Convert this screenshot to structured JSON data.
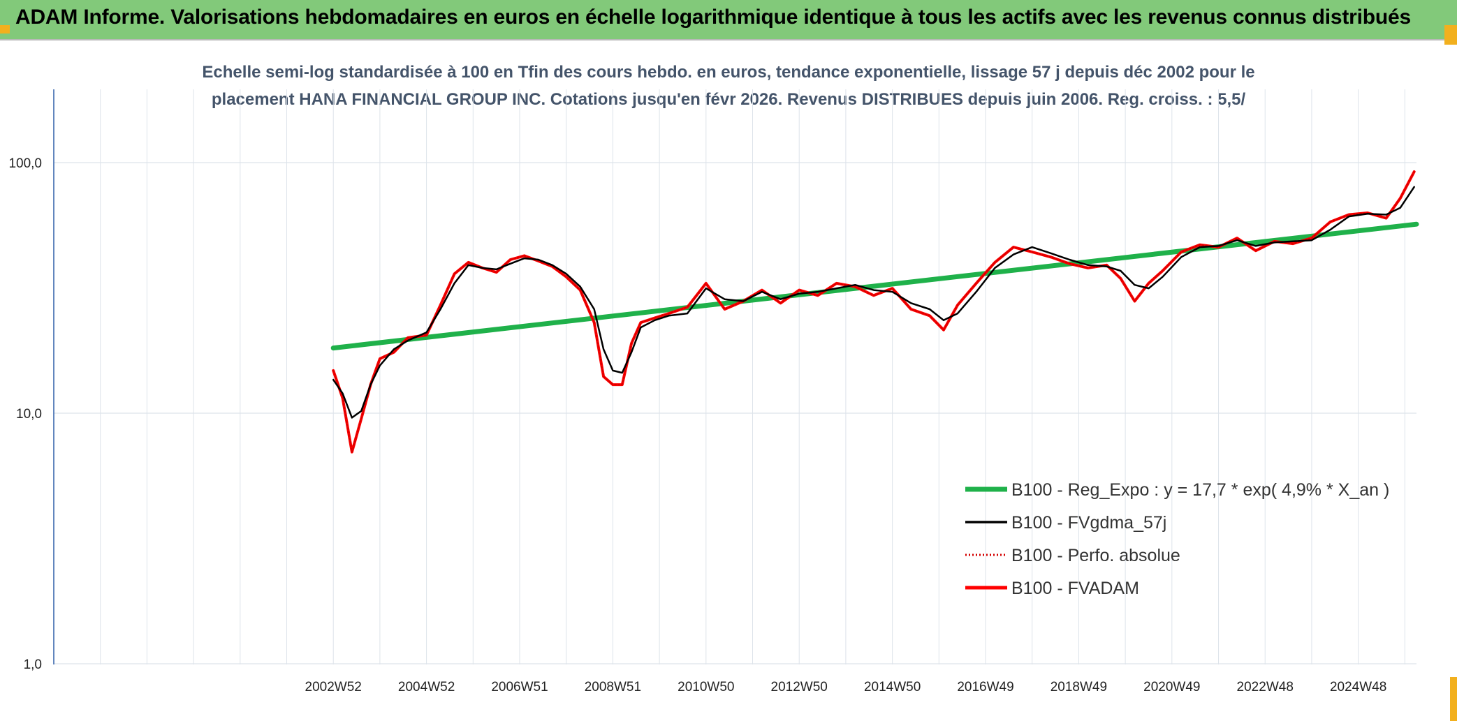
{
  "header": {
    "title": "ADAM Informe. Valorisations hebdomadaires en euros en échelle logarithmique identique à tous les actifs avec les revenus connus distribués"
  },
  "colors": {
    "header_bg": "#82c97a",
    "corner_accent": "#f2b01e",
    "reg_expo": "#1fb14a",
    "fvgdma": "#000000",
    "perfo": "#d40000",
    "fvadam": "#ff0000",
    "grid": "#dde3ea",
    "axis": "#2e5fa8"
  },
  "chart_data": {
    "type": "line",
    "title_lines": [
      "Echelle semi-log standardisée à 100 en Tfin des cours hebdo. en euros, tendance exponentielle, lissage 57 j depuis déc 2002 pour le",
      "placement HANA FINANCIAL GROUP INC. Cotations jusqu'en févr 2026. Revenus DISTRIBUES depuis juin 2006. Reg. croiss. : 5,5/"
    ],
    "y_scale": "log",
    "ylim": [
      1,
      200
    ],
    "y_ticks": [
      {
        "value": 1,
        "label": "1,0"
      },
      {
        "value": 10,
        "label": "10,0"
      },
      {
        "value": 100,
        "label": "100,0"
      }
    ],
    "xlim": [
      1997.0,
      2026.25
    ],
    "x_ticks": [
      {
        "x": 2003.0,
        "label": "2002W52"
      },
      {
        "x": 2005.0,
        "label": "2004W52"
      },
      {
        "x": 2007.0,
        "label": "2006W51"
      },
      {
        "x": 2009.0,
        "label": "2008W51"
      },
      {
        "x": 2011.0,
        "label": "2010W50"
      },
      {
        "x": 2013.0,
        "label": "2012W50"
      },
      {
        "x": 2015.0,
        "label": "2014W50"
      },
      {
        "x": 2017.0,
        "label": "2016W49"
      },
      {
        "x": 2019.0,
        "label": "2018W49"
      },
      {
        "x": 2021.0,
        "label": "2020W49"
      },
      {
        "x": 2023.0,
        "label": "2022W48"
      },
      {
        "x": 2025.0,
        "label": "2024W48"
      }
    ],
    "grid": true,
    "legend_position": "bottom-right",
    "series": [
      {
        "name": "B100 - Reg_Expo : y = 17,7 * exp( 4,9% *  X_an )",
        "key": "reg",
        "style": "thick",
        "x": [
          2003.0,
          2026.25
        ],
        "y": [
          18.2,
          56.8
        ]
      },
      {
        "name": "B100 - FVgdma_57j",
        "key": "fvgdma",
        "style": "thin",
        "x": [
          2003.0,
          2003.2,
          2003.4,
          2003.6,
          2003.8,
          2004.0,
          2004.3,
          2004.6,
          2005.0,
          2005.3,
          2005.6,
          2005.9,
          2006.2,
          2006.5,
          2006.8,
          2007.1,
          2007.4,
          2007.7,
          2008.0,
          2008.3,
          2008.6,
          2008.8,
          2009.0,
          2009.2,
          2009.4,
          2009.6,
          2009.9,
          2010.2,
          2010.6,
          2011.0,
          2011.4,
          2011.8,
          2012.2,
          2012.6,
          2013.0,
          2013.4,
          2013.8,
          2014.2,
          2014.6,
          2015.0,
          2015.4,
          2015.8,
          2016.1,
          2016.4,
          2016.8,
          2017.2,
          2017.6,
          2018.0,
          2018.4,
          2018.8,
          2019.2,
          2019.6,
          2019.9,
          2020.2,
          2020.5,
          2020.8,
          2021.2,
          2021.6,
          2022.0,
          2022.4,
          2022.8,
          2023.2,
          2023.6,
          2024.0,
          2024.4,
          2024.8,
          2025.2,
          2025.6,
          2025.9,
          2026.2
        ],
        "y": [
          13.6,
          12.0,
          9.6,
          10.2,
          13.0,
          15.5,
          18.0,
          19.5,
          21.0,
          26.0,
          33.0,
          39.0,
          38.0,
          37.5,
          39.5,
          41.5,
          41.0,
          39.0,
          36.0,
          32.0,
          26.0,
          18.0,
          14.8,
          14.5,
          17.5,
          22.0,
          23.5,
          24.5,
          25.0,
          31.5,
          28.5,
          28.0,
          30.5,
          28.5,
          30.0,
          30.5,
          31.5,
          32.5,
          31.0,
          30.5,
          27.5,
          26.0,
          23.5,
          25.0,
          30.5,
          38.0,
          43.0,
          46.0,
          43.5,
          41.0,
          39.0,
          38.5,
          37.0,
          32.5,
          31.5,
          35.0,
          42.0,
          46.0,
          46.5,
          49.0,
          46.5,
          48.0,
          48.5,
          49.0,
          54.0,
          61.0,
          62.5,
          62.0,
          66.0,
          80.0
        ]
      },
      {
        "name": "B100 - Perfo. absolue",
        "key": "perfo",
        "style": "dotted",
        "x": [
          2003.0,
          2003.2,
          2003.4,
          2003.6,
          2003.8,
          2004.0,
          2004.3,
          2004.6,
          2005.0,
          2005.3,
          2005.6,
          2005.9,
          2006.2,
          2006.5,
          2006.8,
          2007.1,
          2007.4,
          2007.7,
          2008.0,
          2008.3,
          2008.6,
          2008.8,
          2009.0,
          2009.2,
          2009.4,
          2009.6,
          2009.9,
          2010.2,
          2010.6,
          2011.0,
          2011.4,
          2011.8,
          2012.2,
          2012.6,
          2013.0,
          2013.4,
          2013.8,
          2014.2,
          2014.6,
          2015.0,
          2015.4,
          2015.8,
          2016.1,
          2016.4,
          2016.8,
          2017.2,
          2017.6,
          2018.0,
          2018.4,
          2018.8,
          2019.2,
          2019.6,
          2019.9,
          2020.2,
          2020.5,
          2020.8,
          2021.2,
          2021.6,
          2022.0,
          2022.4,
          2022.8,
          2023.2,
          2023.6,
          2024.0,
          2024.4,
          2024.8,
          2025.2,
          2025.6,
          2025.9,
          2026.2
        ],
        "y": [
          14.8,
          11.5,
          7.0,
          9.5,
          13.0,
          16.5,
          17.5,
          20.0,
          20.5,
          27.0,
          36.0,
          40.0,
          38.0,
          36.5,
          41.0,
          42.5,
          40.5,
          38.5,
          35.0,
          31.0,
          23.0,
          14.0,
          13.0,
          13.0,
          19.0,
          23.0,
          24.0,
          25.0,
          26.5,
          33.0,
          26.0,
          28.0,
          31.0,
          27.5,
          31.0,
          29.5,
          33.0,
          32.0,
          29.5,
          31.5,
          26.0,
          24.5,
          21.5,
          27.0,
          33.0,
          40.0,
          46.0,
          44.0,
          42.0,
          39.5,
          38.0,
          39.0,
          34.5,
          28.0,
          33.0,
          37.0,
          44.0,
          47.0,
          46.0,
          50.0,
          44.5,
          48.5,
          47.5,
          50.0,
          58.0,
          62.0,
          63.0,
          60.0,
          72.0,
          92.0
        ]
      },
      {
        "name": "B100 - FVADAM",
        "key": "fvadam",
        "style": "thick",
        "x": [
          2003.0,
          2003.2,
          2003.4,
          2003.6,
          2003.8,
          2004.0,
          2004.3,
          2004.6,
          2005.0,
          2005.3,
          2005.6,
          2005.9,
          2006.2,
          2006.5,
          2006.8,
          2007.1,
          2007.4,
          2007.7,
          2008.0,
          2008.3,
          2008.6,
          2008.8,
          2009.0,
          2009.2,
          2009.4,
          2009.6,
          2009.9,
          2010.2,
          2010.6,
          2011.0,
          2011.4,
          2011.8,
          2012.2,
          2012.6,
          2013.0,
          2013.4,
          2013.8,
          2014.2,
          2014.6,
          2015.0,
          2015.4,
          2015.8,
          2016.1,
          2016.4,
          2016.8,
          2017.2,
          2017.6,
          2018.0,
          2018.4,
          2018.8,
          2019.2,
          2019.6,
          2019.9,
          2020.2,
          2020.5,
          2020.8,
          2021.2,
          2021.6,
          2022.0,
          2022.4,
          2022.8,
          2023.2,
          2023.6,
          2024.0,
          2024.4,
          2024.8,
          2025.2,
          2025.6,
          2025.9,
          2026.2
        ],
        "y": [
          14.8,
          11.5,
          7.0,
          9.5,
          13.0,
          16.5,
          17.5,
          20.0,
          20.5,
          27.0,
          36.0,
          40.0,
          38.0,
          36.5,
          41.0,
          42.5,
          40.5,
          38.5,
          35.0,
          31.0,
          23.0,
          14.0,
          13.0,
          13.0,
          19.0,
          23.0,
          24.0,
          25.0,
          26.5,
          33.0,
          26.0,
          28.0,
          31.0,
          27.5,
          31.0,
          29.5,
          33.0,
          32.0,
          29.5,
          31.5,
          26.0,
          24.5,
          21.5,
          27.0,
          33.0,
          40.0,
          46.0,
          44.0,
          42.0,
          39.5,
          38.0,
          39.0,
          34.5,
          28.0,
          33.0,
          37.0,
          44.0,
          47.0,
          46.0,
          50.0,
          44.5,
          48.5,
          47.5,
          50.0,
          58.0,
          62.0,
          63.0,
          60.0,
          72.0,
          92.0
        ]
      }
    ]
  }
}
